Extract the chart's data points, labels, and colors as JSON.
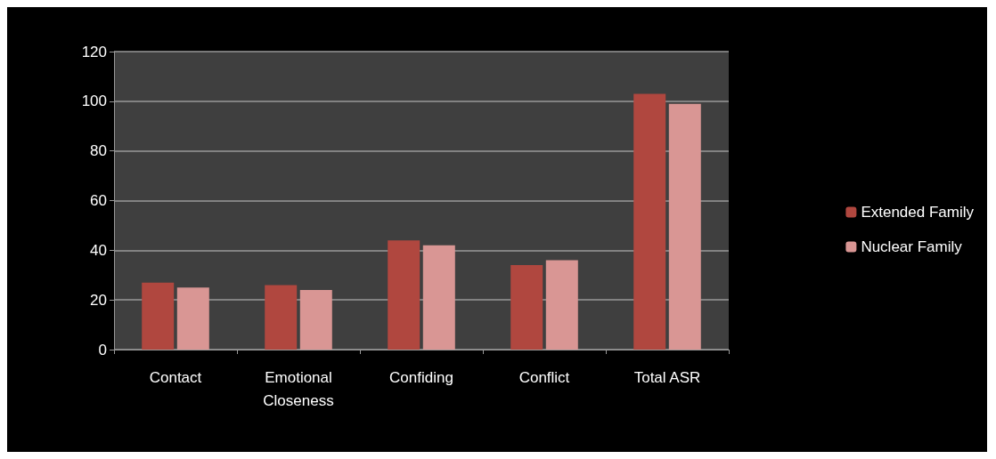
{
  "chart_data": {
    "type": "bar",
    "categories": [
      "Contact",
      "Emotional\nCloseness",
      "Confiding",
      "Conflict",
      "Total ASR"
    ],
    "series": [
      {
        "name": "Extended Family",
        "color": "#b0473f",
        "values": [
          27,
          26,
          44,
          34,
          103
        ]
      },
      {
        "name": "Nuclear Family",
        "color": "#d99694",
        "values": [
          25,
          24,
          42,
          36,
          99
        ]
      }
    ],
    "ylim": [
      0,
      120
    ],
    "yticks": [
      0,
      20,
      40,
      60,
      80,
      100,
      120
    ],
    "grid": "y",
    "legend": "right"
  }
}
